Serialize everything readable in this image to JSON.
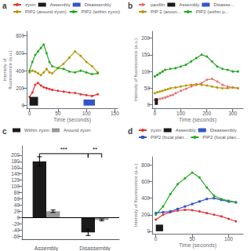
{
  "chart_data": [
    {
      "type": "line",
      "title": "a",
      "xlabel": "Time (seconds)",
      "ylabel": "Intensity of\nfluorescence (a.u.)",
      "xlim": [
        -5,
        155
      ],
      "xticks": [
        0,
        50,
        100,
        150
      ],
      "ylim": [
        -30,
        850
      ],
      "yticks": [
        0,
        200,
        400,
        600,
        800
      ],
      "grid": false,
      "legend": "top",
      "series": [
        {
          "name": "zyxin",
          "type": "line",
          "color": "#e83030",
          "marker": "circle",
          "line_style": "solid",
          "x": [
            0,
            5,
            10,
            15,
            20,
            25,
            30,
            35,
            40,
            50,
            60,
            70,
            80,
            90,
            100,
            110,
            120
          ],
          "values": [
            100,
            150,
            240,
            260,
            230,
            210,
            200,
            190,
            180,
            170,
            160,
            150,
            145,
            130,
            120,
            110,
            130
          ]
        },
        {
          "name": "Assembly",
          "type": "area",
          "color": "#1a1a1a",
          "x": [
            0,
            15
          ],
          "values": [
            100,
            100
          ]
        },
        {
          "name": "Disassembly",
          "type": "area",
          "color": "#3355cc",
          "x": [
            95,
            115
          ],
          "values": [
            70,
            70
          ]
        },
        {
          "name": "PIP2 (around zyxin)",
          "type": "line",
          "color": "#b8960a",
          "marker": "circle",
          "line_style": "solid",
          "x": [
            0,
            5,
            10,
            15,
            20,
            25,
            30,
            35,
            40,
            50,
            60,
            70,
            80,
            90,
            100,
            110,
            120
          ],
          "values": [
            380,
            400,
            390,
            370,
            350,
            380,
            420,
            380,
            370,
            430,
            480,
            550,
            620,
            570,
            500,
            450,
            380
          ]
        },
        {
          "name": "PIP2 (within zyxin)",
          "type": "line",
          "color": "#22aa22",
          "marker": "circle",
          "line_style": "solid",
          "x": [
            0,
            5,
            10,
            15,
            20,
            25,
            30,
            35,
            40,
            50,
            60,
            70,
            80,
            90,
            100,
            110,
            120
          ],
          "values": [
            400,
            500,
            580,
            620,
            660,
            700,
            600,
            500,
            450,
            430,
            420,
            390,
            380,
            400,
            380,
            360,
            370
          ]
        }
      ]
    },
    {
      "type": "line",
      "title": "b",
      "xlabel": "Time (seconds)",
      "ylabel": "Intensity of fluorescence (a.u.)",
      "xlim": [
        -10,
        340
      ],
      "xticks": [
        0,
        100,
        200,
        300
      ],
      "ylim": [
        -10,
        220
      ],
      "yticks": [
        0,
        50,
        100,
        150,
        200
      ],
      "grid": false,
      "legend": "top",
      "series": [
        {
          "name": "paxillin",
          "type": "line",
          "color": "#e87070",
          "marker": "circle",
          "line_style": "dashed",
          "x": [
            0,
            10,
            20,
            30,
            40,
            50,
            60,
            70,
            80,
            100,
            120,
            140,
            160,
            180,
            200,
            220,
            240,
            260,
            280,
            300,
            320
          ],
          "values": [
            15,
            15,
            18,
            20,
            22,
            25,
            28,
            30,
            35,
            42,
            48,
            55,
            60,
            65,
            75,
            78,
            70,
            60,
            55,
            52,
            50
          ]
        },
        {
          "name": "Assembly",
          "type": "area",
          "color": "#1a1a1a",
          "x": [
            0,
            12
          ],
          "values": [
            20,
            20
          ]
        },
        {
          "name": "Disasse...",
          "type": "area",
          "color": "#3355cc",
          "x": [],
          "values": []
        },
        {
          "name": "PIP 2 (aroun...",
          "type": "line",
          "color": "#b8960a",
          "marker": "circle",
          "line_style": "solid",
          "x": [
            0,
            10,
            20,
            30,
            40,
            50,
            60,
            80,
            100,
            120,
            140,
            160,
            180,
            200,
            220,
            240,
            260,
            280,
            300,
            320
          ],
          "values": [
            35,
            38,
            40,
            42,
            45,
            47,
            50,
            52,
            55,
            58,
            60,
            62,
            60,
            58,
            55,
            52,
            50,
            50,
            52,
            50
          ]
        },
        {
          "name": "PIP2 (within p...",
          "type": "line",
          "color": "#22aa22",
          "marker": "circle",
          "line_style": "solid",
          "x": [
            0,
            10,
            20,
            30,
            40,
            60,
            80,
            100,
            120,
            140,
            160,
            180,
            200,
            220,
            240,
            260,
            280,
            300,
            320
          ],
          "values": [
            85,
            90,
            95,
            100,
            105,
            108,
            110,
            115,
            120,
            130,
            140,
            150,
            145,
            130,
            115,
            108,
            105,
            100,
            100
          ]
        }
      ]
    },
    {
      "type": "bar",
      "title": "c",
      "categories": [
        "Assembly",
        "Disassembly"
      ],
      "ylim": [
        -70,
        230
      ],
      "yticks": [
        -60,
        -40,
        -20,
        0,
        20,
        40,
        60,
        80,
        100,
        120,
        140,
        160,
        180,
        200
      ],
      "grid": false,
      "legend": "top",
      "series": [
        {
          "name": "Within zyxin",
          "color": "#1a1a1a",
          "values": [
            180,
            -48
          ],
          "errors": [
            15,
            10
          ]
        },
        {
          "name": "Around zyxin",
          "color": "#999999",
          "values": [
            20,
            -8
          ],
          "errors": [
            4,
            3
          ]
        }
      ],
      "annotations": [
        {
          "text": "***",
          "y": 205
        },
        {
          "text": "**",
          "y": 205
        }
      ]
    },
    {
      "type": "line",
      "title": "d",
      "xlabel": "Time (seconds)",
      "ylabel": "Intensity of fluorescence (a.u.)",
      "xlim": [
        -5,
        120
      ],
      "xticks": [
        0,
        50,
        100
      ],
      "ylim": [
        -30,
        900
      ],
      "yticks": [
        0,
        200,
        400,
        600,
        800
      ],
      "grid": false,
      "legend": "top",
      "series": [
        {
          "name": "zyxin",
          "type": "line",
          "color": "#e83030",
          "marker": "circle",
          "line_style": "solid",
          "x": [
            0,
            10,
            20,
            30,
            40,
            50,
            60,
            70,
            80,
            90,
            100,
            110
          ],
          "values": [
            140,
            200,
            230,
            250,
            260,
            255,
            240,
            220,
            200,
            180,
            150,
            120
          ]
        },
        {
          "name": "Assembly",
          "type": "area",
          "color": "#1a1a1a",
          "x": [
            0,
            10
          ],
          "values": [
            80,
            80
          ]
        },
        {
          "name": "Disassembly",
          "type": "area",
          "color": "#3355cc",
          "x": [],
          "values": []
        },
        {
          "name": "PIP2 (focal plan...",
          "type": "line",
          "color": "#3355cc",
          "marker": "square",
          "line_style": "solid",
          "x": [
            0,
            10,
            20,
            30,
            40,
            50,
            60,
            70,
            80,
            90,
            100,
            110
          ],
          "values": [
            220,
            230,
            240,
            270,
            300,
            330,
            360,
            390,
            400,
            380,
            360,
            350
          ]
        },
        {
          "name": "PIP2 (focal plan...",
          "type": "line",
          "color": "#22aa22",
          "marker": "circle",
          "line_style": "solid",
          "x": [
            0,
            10,
            20,
            30,
            40,
            50,
            60,
            70,
            80,
            90,
            100,
            110
          ],
          "values": [
            200,
            300,
            450,
            570,
            640,
            710,
            650,
            530,
            430,
            390,
            370,
            350
          ]
        }
      ]
    }
  ]
}
